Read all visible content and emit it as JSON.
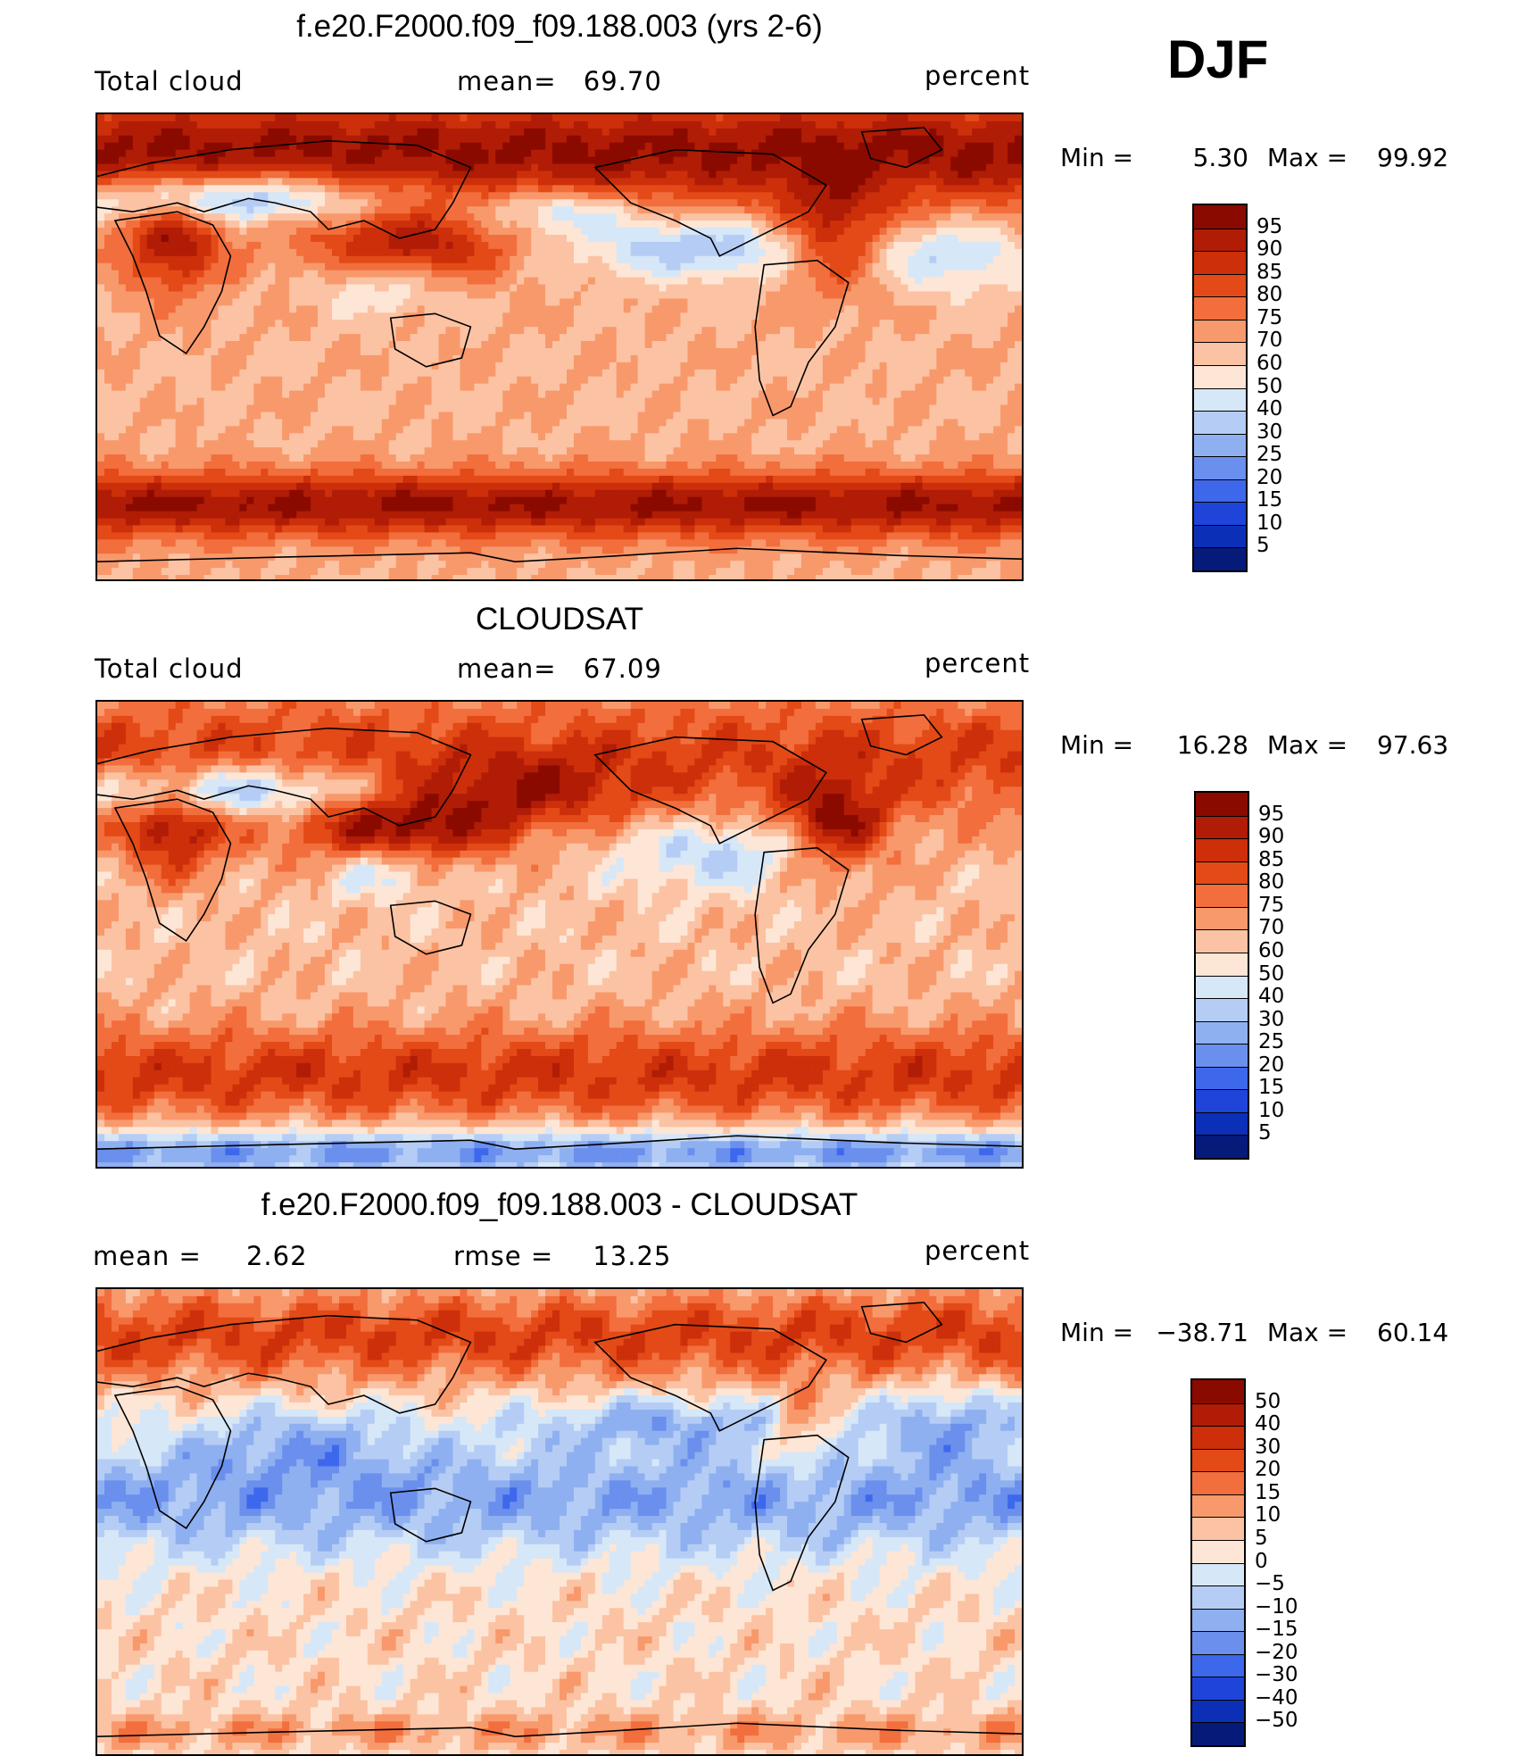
{
  "season": "DJF",
  "panels": [
    {
      "title": "f.e20.F2000.f09_f09.188.003 (yrs 2-6)",
      "left_label": "Total cloud",
      "center_label": "mean=",
      "center_value": "69.70",
      "units": "percent",
      "min_label": "Min  =",
      "min_value": "5.30",
      "max_label": "Max  =",
      "max_value": "99.92",
      "colorbar": {
        "ticks": [
          "95",
          "90",
          "85",
          "80",
          "75",
          "70",
          "60",
          "50",
          "40",
          "30",
          "25",
          "20",
          "15",
          "10",
          "5"
        ],
        "colors": [
          "#8b0a00",
          "#b01c05",
          "#cc2f0a",
          "#e34a17",
          "#f26e3d",
          "#f8996c",
          "#fbc3a3",
          "#fde6d6",
          "#d6e7f8",
          "#b5cdf5",
          "#8fb0f0",
          "#6a8fed",
          "#3e68ec",
          "#1e44d9",
          "#0c2fb8",
          "#061a7a"
        ]
      },
      "field": "model"
    },
    {
      "title": "CLOUDSAT",
      "left_label": "Total cloud",
      "center_label": "mean=",
      "center_value": "67.09",
      "units": "percent",
      "min_label": "Min  =",
      "min_value": "16.28",
      "max_label": "Max  =",
      "max_value": "97.63",
      "colorbar": {
        "ticks": [
          "95",
          "90",
          "85",
          "80",
          "75",
          "70",
          "60",
          "50",
          "40",
          "30",
          "25",
          "20",
          "15",
          "10",
          "5"
        ],
        "colors": [
          "#8b0a00",
          "#b01c05",
          "#cc2f0a",
          "#e34a17",
          "#f26e3d",
          "#f8996c",
          "#fbc3a3",
          "#fde6d6",
          "#d6e7f8",
          "#b5cdf5",
          "#8fb0f0",
          "#6a8fed",
          "#3e68ec",
          "#1e44d9",
          "#0c2fb8",
          "#061a7a"
        ]
      },
      "field": "obs"
    },
    {
      "title": "f.e20.F2000.f09_f09.188.003 - CLOUDSAT",
      "left_label": "mean =",
      "left_value": "2.62",
      "center_label": "rmse =",
      "center_value": "13.25",
      "units": "percent",
      "min_label": "Min  =",
      "min_value": "−38.71",
      "max_label": "Max  =",
      "max_value": "60.14",
      "colorbar": {
        "ticks": [
          "50",
          "40",
          "30",
          "20",
          "15",
          "10",
          "5",
          "0",
          "−5",
          "−10",
          "−15",
          "−20",
          "−30",
          "−40",
          "−50"
        ],
        "colors": [
          "#8b0a00",
          "#b01c05",
          "#cc2f0a",
          "#e34a17",
          "#f26e3d",
          "#f8996c",
          "#fbc3a3",
          "#fde6d6",
          "#d6e7f8",
          "#b5cdf5",
          "#8fb0f0",
          "#6a8fed",
          "#3e68ec",
          "#1e44d9",
          "#0c2fb8",
          "#061a7a"
        ]
      },
      "field": "diff"
    }
  ]
}
